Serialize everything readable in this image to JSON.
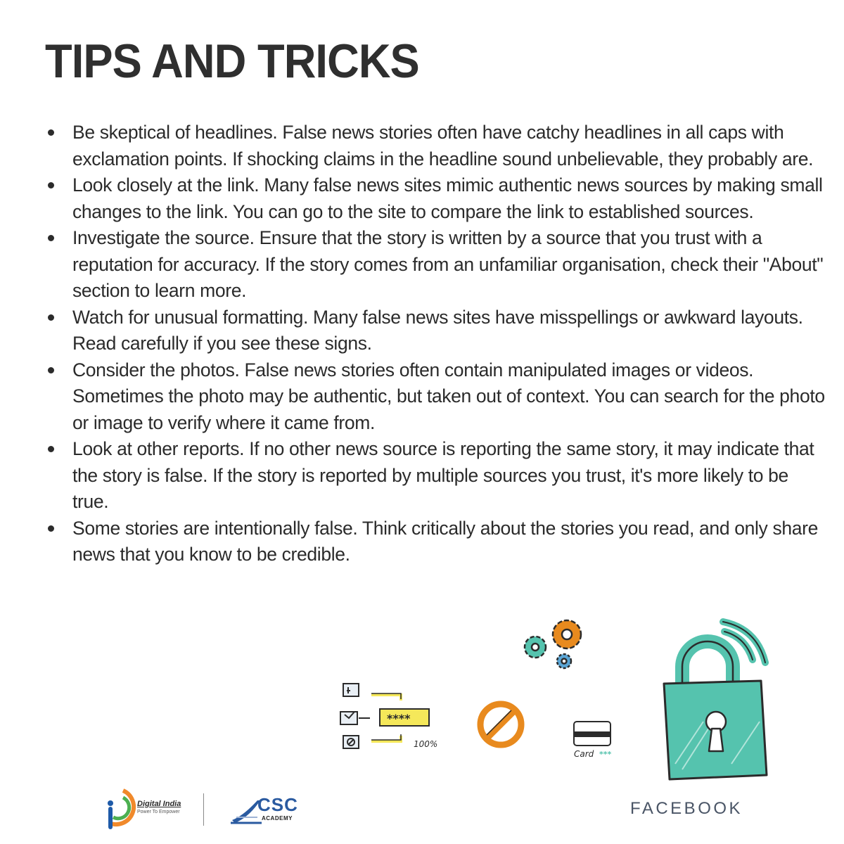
{
  "title": "TIPS AND TRICKS",
  "tips": [
    "Be skeptical of headlines. False news stories often have catchy headlines in all caps with exclamation points. If shocking claims in the headline sound unbelievable, they probably are.",
    "Look closely at the link. Many false news sites mimic authentic news sources by making small changes to the link. You can go to the site to compare the link to established sources.",
    "Investigate the source. Ensure that the story is written by a source that you trust with a reputation for accuracy. If the story comes from an unfamiliar organisation, check their \"About\" section to learn more.",
    "Watch for unusual formatting. Many false news sites have misspellings or awkward layouts. Read carefully if you see these signs.",
    "Consider the photos. False news stories often contain manipulated images or videos. Sometimes the photo may be authentic, but taken out of context. You can search for the photo or image to verify where it came from.",
    "Look at other reports. If no other news source is reporting the same story, it may indicate that the story is false. If the story is reported by multiple sources you trust, it's more likely to be true.",
    "Some stories are intentionally false. Think critically about the stories you read, and only share news that you know to be credible."
  ],
  "illustration": {
    "password_field": "****",
    "percent": "100%",
    "card_label": "Card",
    "card_mask": "***"
  },
  "footer": {
    "digital_india": "Digital India",
    "digital_india_tagline": "Power To Empower",
    "csc": "CSC",
    "csc_sub": "ACADEMY",
    "brand": "FACEBOOK"
  },
  "colors": {
    "teal": "#55c3ae",
    "orange": "#e88a1e",
    "yellow": "#f5e85a",
    "text": "#2b2b2b"
  }
}
